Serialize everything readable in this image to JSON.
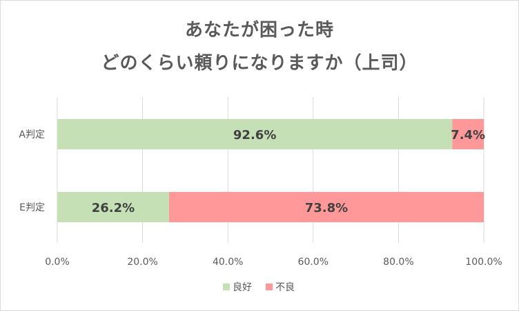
{
  "title_line1": "あなたが困った時",
  "title_line2": "どのくらい頼りになりますか（上司）",
  "chart_data": {
    "type": "bar",
    "orientation": "horizontal",
    "stacked": true,
    "percent_stacked": true,
    "categories": [
      "A判定",
      "E判定"
    ],
    "series": [
      {
        "name": "良好",
        "values": [
          92.6,
          26.2
        ],
        "color": "#c5e0b4"
      },
      {
        "name": "不良",
        "values": [
          7.4,
          73.8
        ],
        "color": "#ff9999"
      }
    ],
    "data_labels": [
      [
        "92.6%",
        "26.2%"
      ],
      [
        "7.4%",
        "73.8%"
      ]
    ],
    "xlim": [
      0,
      100
    ],
    "x_ticks": [
      "0.0%",
      "20.0%",
      "40.0%",
      "60.0%",
      "80.0%",
      "100.0%"
    ],
    "grid": true,
    "legend_position": "bottom"
  }
}
